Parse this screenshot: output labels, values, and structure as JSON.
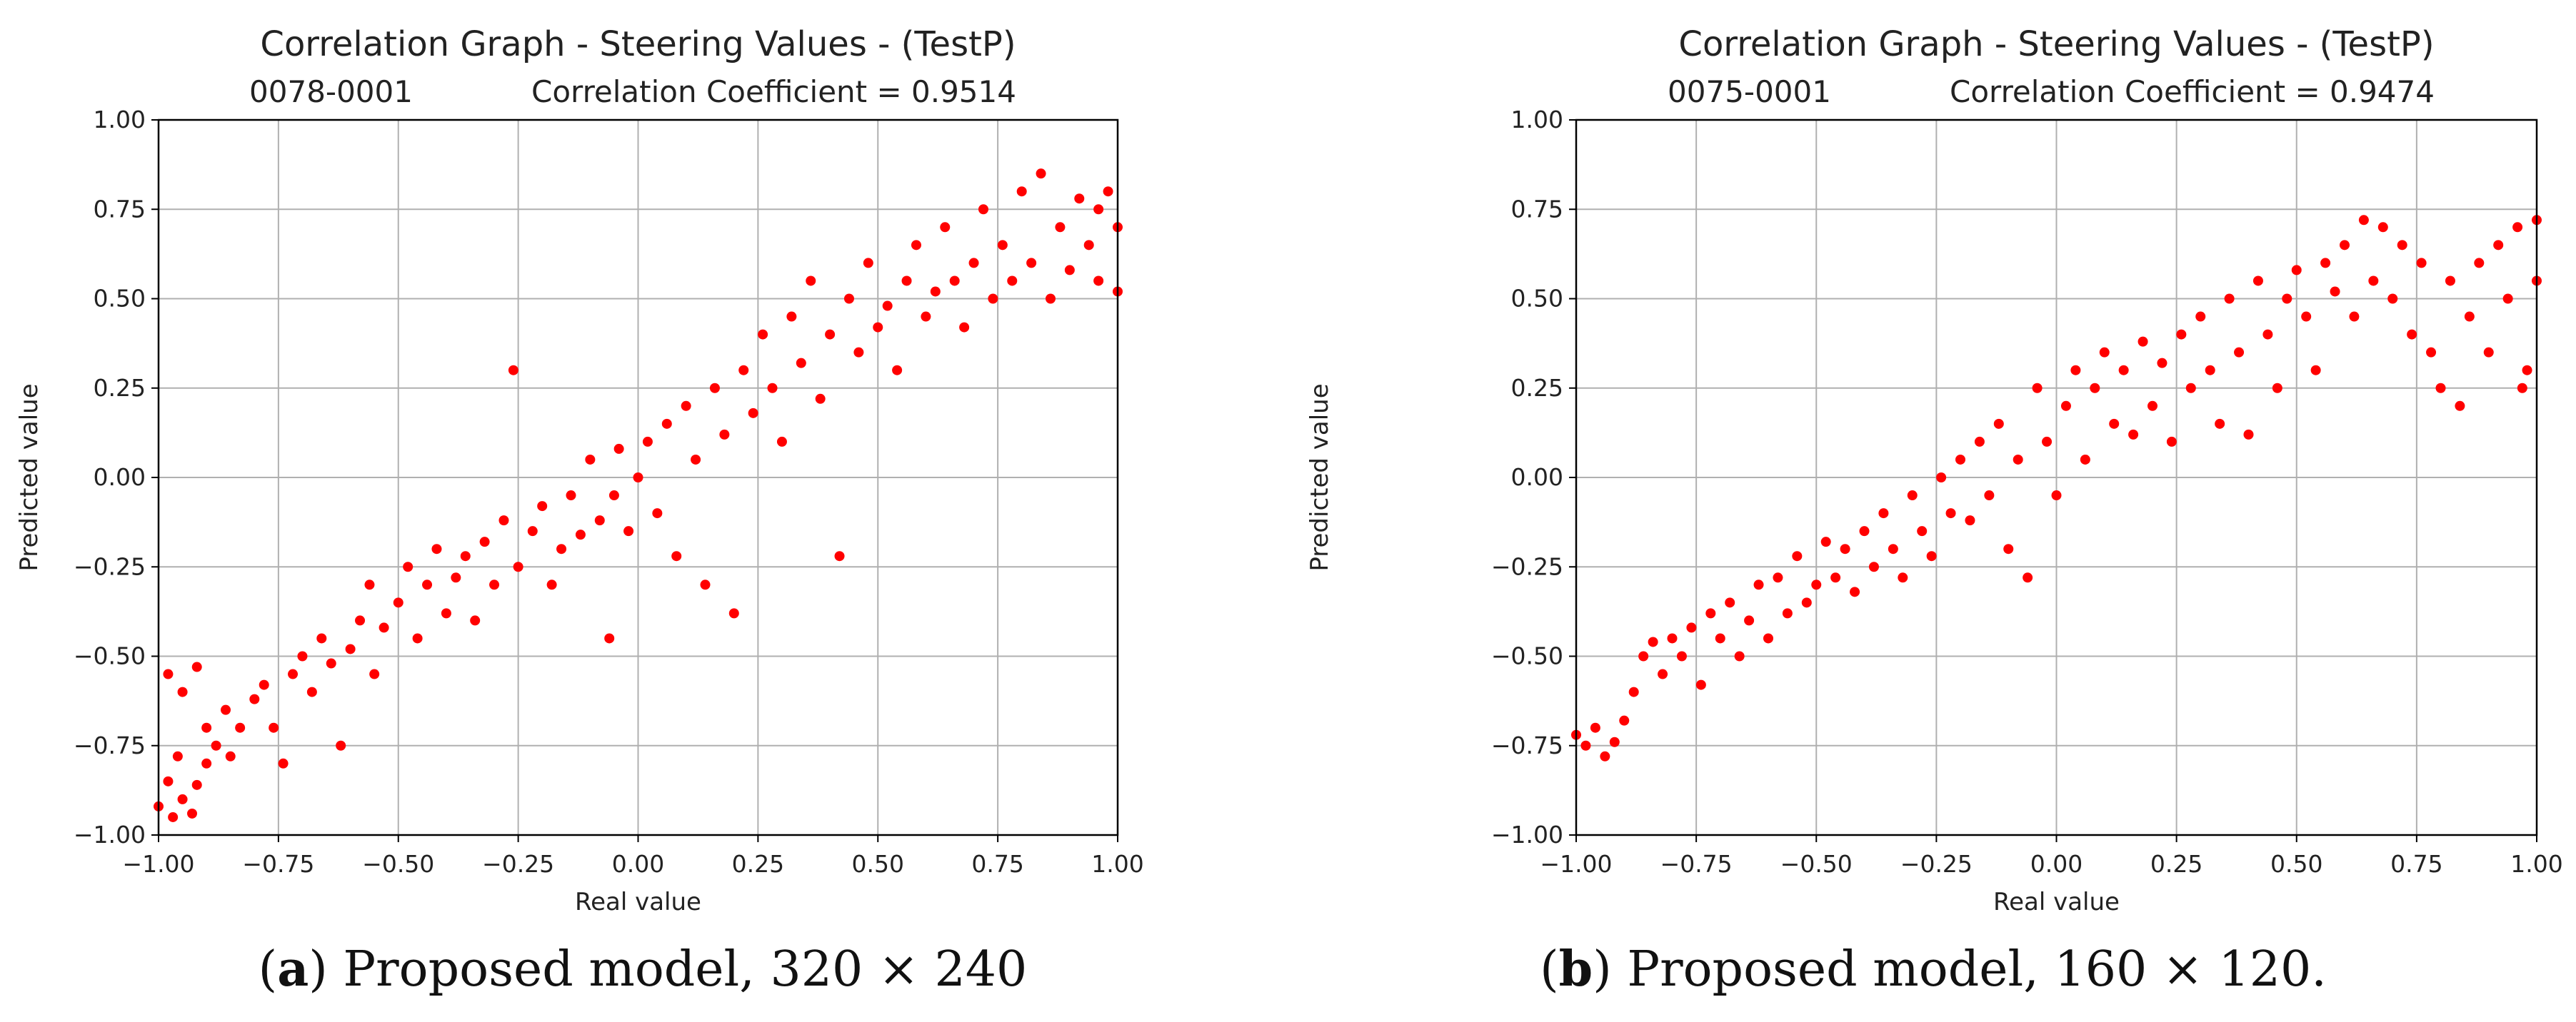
{
  "chart_data": [
    {
      "type": "scatter",
      "title": "Correlation Graph - Steering Values - (TestP)",
      "subtitle_id": "0078-0001",
      "subtitle_corr": "Correlation Coefficient = 0.9514",
      "xlabel": "Real value",
      "ylabel": "Predicted value",
      "xlim": [
        -1.0,
        1.0
      ],
      "ylim": [
        -1.0,
        1.0
      ],
      "xticks": [
        "−1.00",
        "−0.75",
        "−0.50",
        "−0.25",
        "0.00",
        "0.25",
        "0.50",
        "0.75",
        "1.00"
      ],
      "yticks": [
        "−1.00",
        "−0.75",
        "−0.50",
        "−0.25",
        "0.00",
        "0.25",
        "0.50",
        "0.75",
        "1.00"
      ],
      "grid": true,
      "marker_color": "#ff0000",
      "correlation": 0.9514,
      "series": [
        {
          "name": "steering",
          "points": [
            [
              -1.0,
              -0.92
            ],
            [
              -0.98,
              -0.85
            ],
            [
              -0.97,
              -0.95
            ],
            [
              -0.95,
              -0.9
            ],
            [
              -0.93,
              -0.94
            ],
            [
              -0.96,
              -0.78
            ],
            [
              -0.92,
              -0.86
            ],
            [
              -0.9,
              -0.8
            ],
            [
              -0.98,
              -0.55
            ],
            [
              -0.95,
              -0.6
            ],
            [
              -0.92,
              -0.53
            ],
            [
              -0.9,
              -0.7
            ],
            [
              -0.88,
              -0.75
            ],
            [
              -0.86,
              -0.65
            ],
            [
              -0.85,
              -0.78
            ],
            [
              -0.83,
              -0.7
            ],
            [
              -0.8,
              -0.62
            ],
            [
              -0.78,
              -0.58
            ],
            [
              -0.76,
              -0.7
            ],
            [
              -0.74,
              -0.8
            ],
            [
              -0.72,
              -0.55
            ],
            [
              -0.7,
              -0.5
            ],
            [
              -0.68,
              -0.6
            ],
            [
              -0.66,
              -0.45
            ],
            [
              -0.64,
              -0.52
            ],
            [
              -0.62,
              -0.75
            ],
            [
              -0.6,
              -0.48
            ],
            [
              -0.58,
              -0.4
            ],
            [
              -0.56,
              -0.3
            ],
            [
              -0.55,
              -0.55
            ],
            [
              -0.53,
              -0.42
            ],
            [
              -0.5,
              -0.35
            ],
            [
              -0.48,
              -0.25
            ],
            [
              -0.46,
              -0.45
            ],
            [
              -0.44,
              -0.3
            ],
            [
              -0.42,
              -0.2
            ],
            [
              -0.4,
              -0.38
            ],
            [
              -0.38,
              -0.28
            ],
            [
              -0.36,
              -0.22
            ],
            [
              -0.34,
              -0.4
            ],
            [
              -0.32,
              -0.18
            ],
            [
              -0.3,
              -0.3
            ],
            [
              -0.28,
              -0.12
            ],
            [
              -0.26,
              0.3
            ],
            [
              -0.25,
              -0.25
            ],
            [
              -0.22,
              -0.15
            ],
            [
              -0.2,
              -0.08
            ],
            [
              -0.18,
              -0.3
            ],
            [
              -0.16,
              -0.2
            ],
            [
              -0.14,
              -0.05
            ],
            [
              -0.12,
              -0.16
            ],
            [
              -0.1,
              0.05
            ],
            [
              -0.08,
              -0.12
            ],
            [
              -0.06,
              -0.45
            ],
            [
              -0.05,
              -0.05
            ],
            [
              -0.04,
              0.08
            ],
            [
              -0.02,
              -0.15
            ],
            [
              0.0,
              0.0
            ],
            [
              0.02,
              0.1
            ],
            [
              0.04,
              -0.1
            ],
            [
              0.06,
              0.15
            ],
            [
              0.08,
              -0.22
            ],
            [
              0.1,
              0.2
            ],
            [
              0.12,
              0.05
            ],
            [
              0.14,
              -0.3
            ],
            [
              0.16,
              0.25
            ],
            [
              0.18,
              0.12
            ],
            [
              0.2,
              -0.38
            ],
            [
              0.22,
              0.3
            ],
            [
              0.24,
              0.18
            ],
            [
              0.26,
              0.4
            ],
            [
              0.28,
              0.25
            ],
            [
              0.3,
              0.1
            ],
            [
              0.32,
              0.45
            ],
            [
              0.34,
              0.32
            ],
            [
              0.36,
              0.55
            ],
            [
              0.38,
              0.22
            ],
            [
              0.4,
              0.4
            ],
            [
              0.42,
              -0.22
            ],
            [
              0.44,
              0.5
            ],
            [
              0.46,
              0.35
            ],
            [
              0.48,
              0.6
            ],
            [
              0.5,
              0.42
            ],
            [
              0.52,
              0.48
            ],
            [
              0.54,
              0.3
            ],
            [
              0.56,
              0.55
            ],
            [
              0.58,
              0.65
            ],
            [
              0.6,
              0.45
            ],
            [
              0.62,
              0.52
            ],
            [
              0.64,
              0.7
            ],
            [
              0.66,
              0.55
            ],
            [
              0.68,
              0.42
            ],
            [
              0.7,
              0.6
            ],
            [
              0.72,
              0.75
            ],
            [
              0.74,
              0.5
            ],
            [
              0.76,
              0.65
            ],
            [
              0.78,
              0.55
            ],
            [
              0.8,
              0.8
            ],
            [
              0.82,
              0.6
            ],
            [
              0.84,
              0.85
            ],
            [
              0.86,
              0.5
            ],
            [
              0.88,
              0.7
            ],
            [
              0.9,
              0.58
            ],
            [
              0.92,
              0.78
            ],
            [
              0.94,
              0.65
            ],
            [
              0.96,
              0.55
            ],
            [
              0.98,
              0.8
            ],
            [
              1.0,
              0.7
            ],
            [
              1.0,
              0.52
            ],
            [
              0.96,
              0.75
            ]
          ]
        }
      ]
    },
    {
      "type": "scatter",
      "title": "Correlation Graph - Steering Values - (TestP)",
      "subtitle_id": "0075-0001",
      "subtitle_corr": "Correlation Coefficient = 0.9474",
      "xlabel": "Real value",
      "ylabel": "Predicted value",
      "xlim": [
        -1.0,
        1.0
      ],
      "ylim": [
        -1.0,
        1.0
      ],
      "xticks": [
        "−1.00",
        "−0.75",
        "−0.50",
        "−0.25",
        "0.00",
        "0.25",
        "0.50",
        "0.75",
        "1.00"
      ],
      "yticks": [
        "−1.00",
        "−0.75",
        "−0.50",
        "−0.25",
        "0.00",
        "0.25",
        "0.50",
        "0.75",
        "1.00"
      ],
      "grid": true,
      "marker_color": "#ff0000",
      "correlation": 0.9474,
      "series": [
        {
          "name": "steering",
          "points": [
            [
              -1.0,
              -0.72
            ],
            [
              -0.98,
              -0.75
            ],
            [
              -0.96,
              -0.7
            ],
            [
              -0.94,
              -0.78
            ],
            [
              -0.92,
              -0.74
            ],
            [
              -0.9,
              -0.68
            ],
            [
              -0.88,
              -0.6
            ],
            [
              -0.86,
              -0.5
            ],
            [
              -0.84,
              -0.46
            ],
            [
              -0.82,
              -0.55
            ],
            [
              -0.8,
              -0.45
            ],
            [
              -0.78,
              -0.5
            ],
            [
              -0.76,
              -0.42
            ],
            [
              -0.74,
              -0.58
            ],
            [
              -0.72,
              -0.38
            ],
            [
              -0.7,
              -0.45
            ],
            [
              -0.68,
              -0.35
            ],
            [
              -0.66,
              -0.5
            ],
            [
              -0.64,
              -0.4
            ],
            [
              -0.62,
              -0.3
            ],
            [
              -0.6,
              -0.45
            ],
            [
              -0.58,
              -0.28
            ],
            [
              -0.56,
              -0.38
            ],
            [
              -0.54,
              -0.22
            ],
            [
              -0.52,
              -0.35
            ],
            [
              -0.5,
              -0.3
            ],
            [
              -0.48,
              -0.18
            ],
            [
              -0.46,
              -0.28
            ],
            [
              -0.44,
              -0.2
            ],
            [
              -0.42,
              -0.32
            ],
            [
              -0.4,
              -0.15
            ],
            [
              -0.38,
              -0.25
            ],
            [
              -0.36,
              -0.1
            ],
            [
              -0.34,
              -0.2
            ],
            [
              -0.32,
              -0.28
            ],
            [
              -0.3,
              -0.05
            ],
            [
              -0.28,
              -0.15
            ],
            [
              -0.26,
              -0.22
            ],
            [
              -0.24,
              0.0
            ],
            [
              -0.22,
              -0.1
            ],
            [
              -0.2,
              0.05
            ],
            [
              -0.18,
              -0.12
            ],
            [
              -0.16,
              0.1
            ],
            [
              -0.14,
              -0.05
            ],
            [
              -0.12,
              0.15
            ],
            [
              -0.1,
              -0.2
            ],
            [
              -0.08,
              0.05
            ],
            [
              -0.06,
              -0.28
            ],
            [
              -0.04,
              0.25
            ],
            [
              -0.02,
              0.1
            ],
            [
              0.0,
              -0.05
            ],
            [
              0.02,
              0.2
            ],
            [
              0.04,
              0.3
            ],
            [
              0.06,
              0.05
            ],
            [
              0.08,
              0.25
            ],
            [
              0.1,
              0.35
            ],
            [
              0.12,
              0.15
            ],
            [
              0.14,
              0.3
            ],
            [
              0.16,
              0.12
            ],
            [
              0.18,
              0.38
            ],
            [
              0.2,
              0.2
            ],
            [
              0.22,
              0.32
            ],
            [
              0.24,
              0.1
            ],
            [
              0.26,
              0.4
            ],
            [
              0.28,
              0.25
            ],
            [
              0.3,
              0.45
            ],
            [
              0.32,
              0.3
            ],
            [
              0.34,
              0.15
            ],
            [
              0.36,
              0.5
            ],
            [
              0.38,
              0.35
            ],
            [
              0.4,
              0.12
            ],
            [
              0.42,
              0.55
            ],
            [
              0.44,
              0.4
            ],
            [
              0.46,
              0.25
            ],
            [
              0.48,
              0.5
            ],
            [
              0.5,
              0.58
            ],
            [
              0.52,
              0.45
            ],
            [
              0.54,
              0.3
            ],
            [
              0.56,
              0.6
            ],
            [
              0.58,
              0.52
            ],
            [
              0.6,
              0.65
            ],
            [
              0.62,
              0.45
            ],
            [
              0.64,
              0.72
            ],
            [
              0.66,
              0.55
            ],
            [
              0.68,
              0.7
            ],
            [
              0.7,
              0.5
            ],
            [
              0.72,
              0.65
            ],
            [
              0.74,
              0.4
            ],
            [
              0.76,
              0.6
            ],
            [
              0.78,
              0.35
            ],
            [
              0.8,
              0.25
            ],
            [
              0.82,
              0.55
            ],
            [
              0.84,
              0.2
            ],
            [
              0.86,
              0.45
            ],
            [
              0.88,
              0.6
            ],
            [
              0.9,
              0.35
            ],
            [
              0.92,
              0.65
            ],
            [
              0.94,
              0.5
            ],
            [
              0.96,
              0.7
            ],
            [
              0.98,
              0.3
            ],
            [
              1.0,
              0.72
            ],
            [
              1.0,
              0.55
            ],
            [
              0.97,
              0.25
            ]
          ]
        }
      ]
    }
  ],
  "captions": [
    {
      "letter": "a",
      "text": "Proposed model, 320 × 240"
    },
    {
      "letter": "b",
      "text": "Proposed model, 160 × 120."
    }
  ]
}
